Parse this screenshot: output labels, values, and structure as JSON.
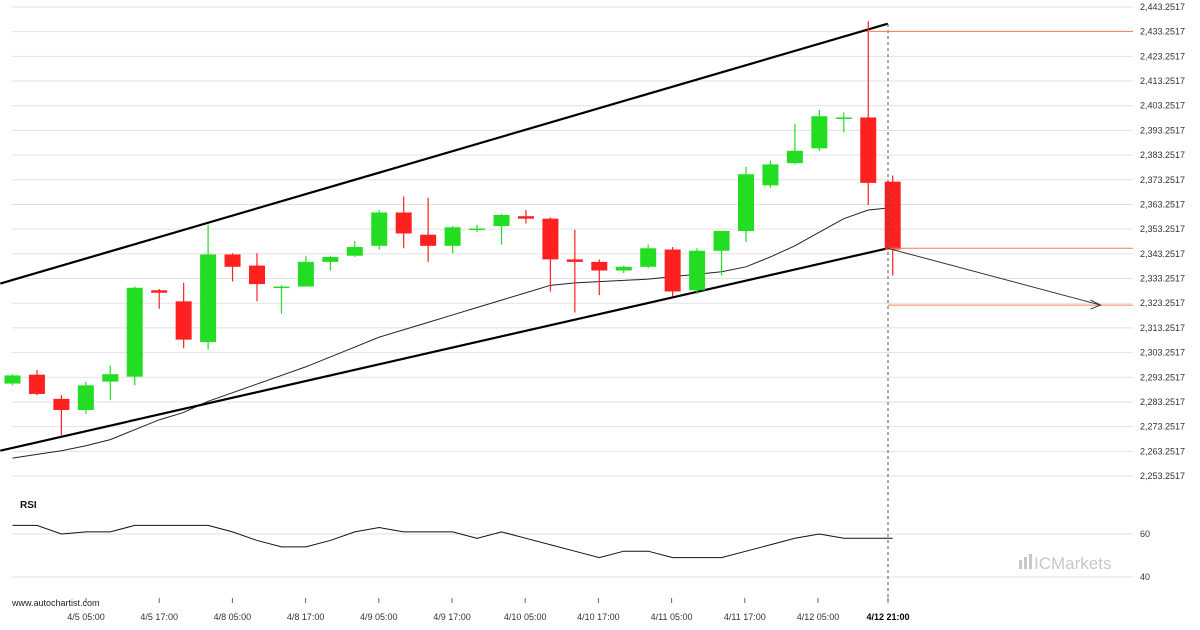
{
  "watermark": "www.autochartist.com",
  "brand": {
    "prefix": "IC",
    "name": "Markets",
    "accent_color": "#c8c8c8"
  },
  "colors": {
    "bull": "#22dd22",
    "bear": "#ff2020",
    "channel": "#000000",
    "moving_average": "#222222",
    "level_line": "#f08050",
    "grid": "#e2e2e2",
    "projection_line": "#333333"
  },
  "chart_data": [
    {
      "type": "candlestick",
      "ylim": [
        2253.2517,
        2443.2517
      ],
      "y_ticks": [
        "2,443.2517",
        "2,433.2517",
        "2,423.2517",
        "2,413.2517",
        "2,403.2517",
        "2,393.2517",
        "2,383.2517",
        "2,373.2517",
        "2,363.2517",
        "2,353.2517",
        "2,343.2517",
        "2,333.2517",
        "2,323.2517",
        "2,313.2517",
        "2,303.2517",
        "2,293.2517",
        "2,283.2517",
        "2,273.2517",
        "2,263.2517",
        "2,253.2517"
      ],
      "x_ticks": [
        "4/5 05:00",
        "4/5 17:00",
        "4/8 05:00",
        "4/8 17:00",
        "4/9 05:00",
        "4/9 17:00",
        "4/10 05:00",
        "4/10 17:00",
        "4/11 05:00",
        "4/11 17:00",
        "4/12 05:00",
        "4/12 21:00"
      ],
      "active_x_tick": "4/12 21:00",
      "grid": true,
      "candles": [
        {
          "o": 2290.7,
          "h": 2294.5,
          "l": 2290.0,
          "c": 2294.0
        },
        {
          "o": 2294.3,
          "h": 2296.2,
          "l": 2286.0,
          "c": 2286.5
        },
        {
          "o": 2284.5,
          "h": 2286.0,
          "l": 2269.5,
          "c": 2280.0
        },
        {
          "o": 2280.0,
          "h": 2291.5,
          "l": 2278.5,
          "c": 2290.0
        },
        {
          "o": 2291.5,
          "h": 2298.0,
          "l": 2284.0,
          "c": 2294.5
        },
        {
          "o": 2293.5,
          "h": 2330.0,
          "l": 2290.0,
          "c": 2329.5
        },
        {
          "o": 2328.5,
          "h": 2329.0,
          "l": 2321.0,
          "c": 2327.5
        },
        {
          "o": 2324.0,
          "h": 2331.5,
          "l": 2305.0,
          "c": 2308.5
        },
        {
          "o": 2307.5,
          "h": 2355.0,
          "l": 2304.5,
          "c": 2343.0
        },
        {
          "o": 2343.0,
          "h": 2343.5,
          "l": 2332.0,
          "c": 2338.0
        },
        {
          "o": 2338.5,
          "h": 2343.5,
          "l": 2324.0,
          "c": 2331.0
        },
        {
          "o": 2330.0,
          "h": 2330.5,
          "l": 2319.0,
          "c": 2330.0
        },
        {
          "o": 2330.0,
          "h": 2342.5,
          "l": 2330.0,
          "c": 2340.0
        },
        {
          "o": 2340.0,
          "h": 2342.5,
          "l": 2336.5,
          "c": 2342.0
        },
        {
          "o": 2342.5,
          "h": 2348.5,
          "l": 2342.0,
          "c": 2346.0
        },
        {
          "o": 2346.5,
          "h": 2361.0,
          "l": 2345.0,
          "c": 2360.0
        },
        {
          "o": 2360.0,
          "h": 2366.5,
          "l": 2345.5,
          "c": 2351.5
        },
        {
          "o": 2351.0,
          "h": 2366.0,
          "l": 2340.0,
          "c": 2346.5
        },
        {
          "o": 2346.5,
          "h": 2354.5,
          "l": 2343.5,
          "c": 2354.0
        },
        {
          "o": 2353.5,
          "h": 2355.0,
          "l": 2352.0,
          "c": 2353.5
        },
        {
          "o": 2354.5,
          "h": 2359.5,
          "l": 2347.0,
          "c": 2359.0
        },
        {
          "o": 2358.5,
          "h": 2361.0,
          "l": 2355.5,
          "c": 2357.5
        },
        {
          "o": 2357.5,
          "h": 2358.0,
          "l": 2328.0,
          "c": 2341.0
        },
        {
          "o": 2341.0,
          "h": 2353.0,
          "l": 2319.5,
          "c": 2340.0
        },
        {
          "o": 2340.0,
          "h": 2341.0,
          "l": 2326.5,
          "c": 2336.5
        },
        {
          "o": 2336.5,
          "h": 2338.5,
          "l": 2335.5,
          "c": 2338.0
        },
        {
          "o": 2338.0,
          "h": 2347.0,
          "l": 2337.5,
          "c": 2345.5
        },
        {
          "o": 2345.0,
          "h": 2346.0,
          "l": 2326.0,
          "c": 2328.0
        },
        {
          "o": 2328.5,
          "h": 2345.5,
          "l": 2327.0,
          "c": 2344.5
        },
        {
          "o": 2344.5,
          "h": 2352.5,
          "l": 2334.5,
          "c": 2352.5
        },
        {
          "o": 2352.5,
          "h": 2378.5,
          "l": 2348.0,
          "c": 2375.5
        },
        {
          "o": 2371.0,
          "h": 2381.0,
          "l": 2370.0,
          "c": 2379.5
        },
        {
          "o": 2380.0,
          "h": 2396.0,
          "l": 2379.5,
          "c": 2385.0
        },
        {
          "o": 2386.0,
          "h": 2401.5,
          "l": 2385.0,
          "c": 2399.0
        },
        {
          "o": 2398.5,
          "h": 2400.5,
          "l": 2392.5,
          "c": 2398.5
        },
        {
          "o": 2398.5,
          "h": 2437.5,
          "l": 2363.0,
          "c": 2372.0
        },
        {
          "o": 2372.5,
          "h": 2375.0,
          "l": 2334.5,
          "c": 2345.0
        }
      ],
      "channel": {
        "upper": {
          "from": {
            "bar": -0.5,
            "price": 2331.2
          },
          "to": {
            "bar": 35.8,
            "price": 2436.5
          }
        },
        "lower": {
          "from": {
            "bar": -0.5,
            "price": 2263.5
          },
          "to": {
            "bar": 35.8,
            "price": 2345.5
          }
        }
      },
      "moving_average": [
        2260.5,
        2262.0,
        2263.5,
        2265.5,
        2268.0,
        2272.0,
        2276.0,
        2279.0,
        2283.5,
        2287.0,
        2290.5,
        2294.0,
        2297.5,
        2301.5,
        2305.5,
        2309.5,
        2312.5,
        2315.5,
        2318.5,
        2321.5,
        2324.5,
        2327.5,
        2330.5,
        2331.5,
        2332.0,
        2332.5,
        2333.0,
        2334.0,
        2335.0,
        2336.0,
        2338.0,
        2342.0,
        2346.5,
        2352.0,
        2357.5,
        2361.0,
        2362.0
      ],
      "levels": [
        {
          "price": 2433.4
        },
        {
          "price": 2345.5
        },
        {
          "price": 2322.5
        }
      ],
      "projection": {
        "from": {
          "bar": 35.8,
          "price": 2345.5
        },
        "to": {
          "bar": 44.5,
          "price": 2322.5
        }
      },
      "breakout_bar": 36
    },
    {
      "type": "line",
      "title": "RSI",
      "y_ticks": [
        60,
        40
      ],
      "ylim": [
        33,
        82
      ],
      "values": [
        64,
        64,
        60,
        61,
        61,
        64,
        64,
        64,
        64,
        61,
        57,
        54,
        54,
        57,
        61,
        63,
        61,
        61,
        61,
        58,
        61,
        58,
        55,
        52,
        49,
        52,
        52,
        49,
        49,
        49,
        52,
        55,
        58,
        60,
        58,
        58,
        58
      ]
    }
  ]
}
